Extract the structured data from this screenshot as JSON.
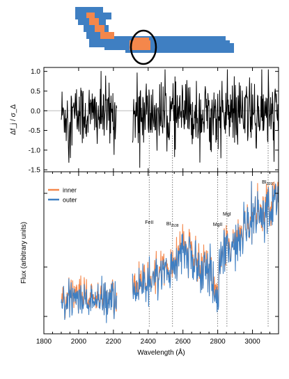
{
  "chart_data": [
    {
      "type": "line",
      "panel": "top",
      "ylabel": "Δf_j / σ_Δ",
      "ylim": [
        -1.55,
        1.1
      ],
      "xlim": [
        1800,
        3150
      ],
      "yticks": [
        {
          "v": 1.0,
          "label": "1.0"
        },
        {
          "v": 0.5,
          "label": "0.5"
        },
        {
          "v": 0.0,
          "label": "0.0"
        },
        {
          "v": -0.5,
          "label": "-0.5"
        },
        {
          "v": -1.0,
          "label": "-1.0"
        },
        {
          "v": -1.5,
          "label": "-1.5"
        }
      ],
      "reference_line": 0,
      "series": [
        {
          "color": "#000000",
          "segments": [
            [
              1900,
              2220
            ],
            [
              2310,
              3150
            ]
          ]
        }
      ]
    },
    {
      "type": "line",
      "panel": "bottom",
      "xlabel": "Wavelength (Å)",
      "ylabel": "Flux (arbitrary units)",
      "xlim": [
        1800,
        3150
      ],
      "ylim": [
        0,
        1
      ],
      "xticks": [
        {
          "v": 1800,
          "label": "1800"
        },
        {
          "v": 2000,
          "label": "2000"
        },
        {
          "v": 2200,
          "label": "2200"
        },
        {
          "v": 2400,
          "label": "2400"
        },
        {
          "v": 2600,
          "label": "2600"
        },
        {
          "v": 2800,
          "label": "2800"
        },
        {
          "v": 3000,
          "label": "3000"
        }
      ],
      "legend_position": "top-left",
      "series": [
        {
          "name": "inner",
          "color": "#f4874b"
        },
        {
          "name": "outer",
          "color": "#3f7fc2"
        }
      ],
      "annotations": [
        {
          "x": 2406,
          "label": "FeII"
        },
        {
          "x": 2540,
          "label": "BI",
          "sub": "2538"
        },
        {
          "x": 2800,
          "label": "MgII"
        },
        {
          "x": 2853,
          "label": "MgI"
        },
        {
          "x": 3090,
          "label": "BI",
          "sub": "3096"
        }
      ]
    }
  ],
  "region_map": {
    "outer_color": "#3f7fc2",
    "inner_color": "#f4874b",
    "marker_color": "#000000"
  }
}
